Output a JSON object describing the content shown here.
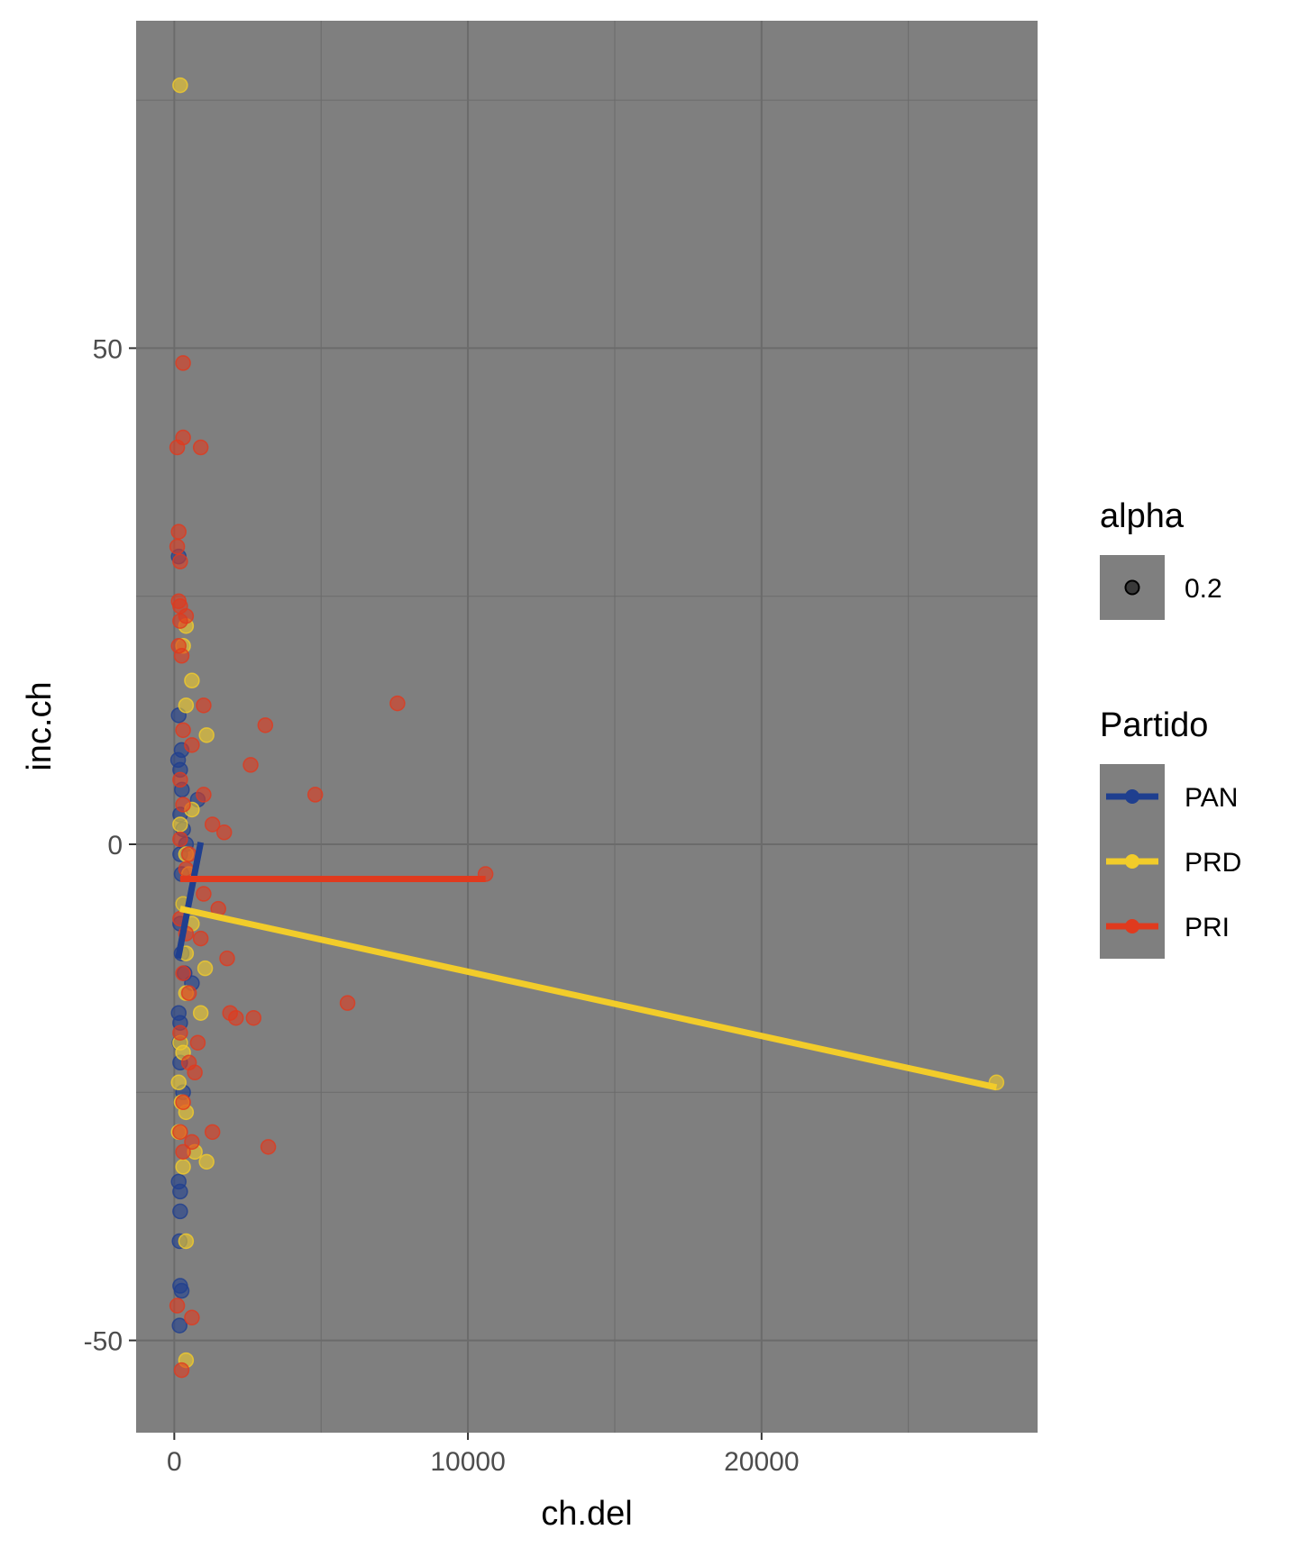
{
  "chart_data": {
    "type": "scatter",
    "xlabel": "ch.del",
    "ylabel": "inc.ch",
    "xlim": [
      -1300,
      29400
    ],
    "ylim": [
      -59.3,
      83
    ],
    "x_ticks": [
      0,
      10000,
      20000
    ],
    "x_tick_labels": [
      "0",
      "10000",
      "20000"
    ],
    "y_ticks": [
      -50,
      0,
      50
    ],
    "y_tick_labels": [
      "-50",
      "0",
      "50"
    ],
    "grid": true,
    "panel_color": "#7f7f7f",
    "grid_color": "#6b6b6b",
    "point_alpha": 0.2,
    "legend_alpha": {
      "title": "alpha",
      "label": "0.2"
    },
    "legend_color": {
      "title": "Partido",
      "placement": "right"
    },
    "series": [
      {
        "name": "PAN",
        "color": "#1f3f8f",
        "points": [
          [
            150,
            29
          ],
          [
            150,
            13
          ],
          [
            250,
            9.5
          ],
          [
            130,
            8.5
          ],
          [
            200,
            7.5
          ],
          [
            260,
            5.5
          ],
          [
            800,
            4.5
          ],
          [
            200,
            3
          ],
          [
            300,
            1.5
          ],
          [
            400,
            0
          ],
          [
            200,
            -1
          ],
          [
            250,
            -3
          ],
          [
            300,
            -6
          ],
          [
            200,
            -8
          ],
          [
            250,
            -11
          ],
          [
            350,
            -13
          ],
          [
            600,
            -14
          ],
          [
            150,
            -17
          ],
          [
            200,
            -18
          ],
          [
            180,
            -20
          ],
          [
            200,
            -22
          ],
          [
            300,
            -25
          ],
          [
            150,
            -34
          ],
          [
            200,
            -35
          ],
          [
            200,
            -37
          ],
          [
            180,
            -40
          ],
          [
            200,
            -44.5
          ],
          [
            250,
            -45
          ],
          [
            180,
            -48.5
          ]
        ],
        "fit": [
          [
            130,
            -11.5
          ],
          [
            900,
            0.2
          ]
        ]
      },
      {
        "name": "PRD",
        "color": "#f2cc2a",
        "points": [
          [
            200,
            76.5
          ],
          [
            400,
            22
          ],
          [
            300,
            20
          ],
          [
            600,
            16.5
          ],
          [
            400,
            14
          ],
          [
            1100,
            11
          ],
          [
            600,
            3.5
          ],
          [
            200,
            2
          ],
          [
            400,
            -1
          ],
          [
            500,
            -3
          ],
          [
            300,
            -6
          ],
          [
            600,
            -8
          ],
          [
            400,
            -11
          ],
          [
            1050,
            -12.5
          ],
          [
            400,
            -15
          ],
          [
            900,
            -17
          ],
          [
            200,
            -20
          ],
          [
            300,
            -21
          ],
          [
            150,
            -24
          ],
          [
            250,
            -26
          ],
          [
            400,
            -27
          ],
          [
            150,
            -29
          ],
          [
            700,
            -31
          ],
          [
            1100,
            -32
          ],
          [
            300,
            -32.5
          ],
          [
            400,
            -40
          ],
          [
            400,
            -52
          ],
          [
            28000,
            -24
          ]
        ],
        "fit": [
          [
            200,
            -6.5
          ],
          [
            28000,
            -24.5
          ]
        ]
      },
      {
        "name": "PRI",
        "color": "#e03a1e",
        "points": [
          [
            300,
            48.5
          ],
          [
            300,
            41
          ],
          [
            100,
            40
          ],
          [
            900,
            40
          ],
          [
            150,
            31.5
          ],
          [
            100,
            30
          ],
          [
            200,
            28.5
          ],
          [
            150,
            24.5
          ],
          [
            200,
            24
          ],
          [
            400,
            23
          ],
          [
            200,
            22.5
          ],
          [
            150,
            20
          ],
          [
            250,
            19
          ],
          [
            1000,
            14
          ],
          [
            3100,
            12
          ],
          [
            7600,
            14.2
          ],
          [
            300,
            11.5
          ],
          [
            600,
            10
          ],
          [
            2600,
            8
          ],
          [
            200,
            6.5
          ],
          [
            1000,
            5
          ],
          [
            4800,
            5
          ],
          [
            300,
            4
          ],
          [
            1300,
            2
          ],
          [
            1700,
            1.2
          ],
          [
            200,
            0.5
          ],
          [
            500,
            -1
          ],
          [
            400,
            -2.5
          ],
          [
            10600,
            -3
          ],
          [
            1000,
            -5
          ],
          [
            1500,
            -6.5
          ],
          [
            200,
            -7.5
          ],
          [
            400,
            -9
          ],
          [
            900,
            -9.5
          ],
          [
            1800,
            -11.5
          ],
          [
            300,
            -13
          ],
          [
            500,
            -15
          ],
          [
            1900,
            -17
          ],
          [
            2100,
            -17.5
          ],
          [
            2700,
            -17.5
          ],
          [
            5900,
            -16
          ],
          [
            200,
            -19
          ],
          [
            800,
            -20
          ],
          [
            500,
            -22
          ],
          [
            700,
            -23
          ],
          [
            300,
            -26
          ],
          [
            200,
            -29
          ],
          [
            1300,
            -29
          ],
          [
            600,
            -30
          ],
          [
            300,
            -31
          ],
          [
            3200,
            -30.5
          ],
          [
            100,
            -46.5
          ],
          [
            600,
            -47.7
          ],
          [
            250,
            -53
          ]
        ],
        "fit": [
          [
            200,
            -3.5
          ],
          [
            10600,
            -3.5
          ]
        ]
      }
    ]
  }
}
